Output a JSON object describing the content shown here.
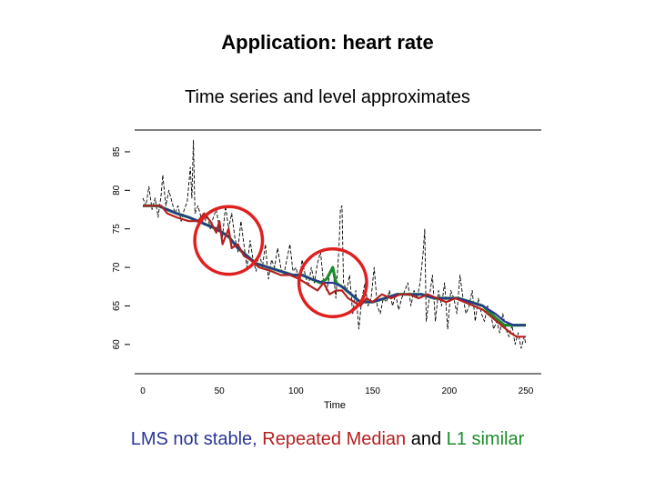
{
  "slide": {
    "title": "Application: heart rate"
  },
  "chart_data": {
    "type": "line",
    "title": "Time series and level approximates",
    "xlabel": "Time",
    "ylabel": "",
    "xlim": [
      0,
      250
    ],
    "ylim": [
      57.5,
      87
    ],
    "x_ticks": [
      "0",
      "50",
      "100",
      "150",
      "200",
      "250"
    ],
    "y_ticks": [
      "60",
      "65",
      "70",
      "75",
      "80",
      "85"
    ],
    "grid": false,
    "series": [
      {
        "name": "",
        "role": "raw",
        "color": "#000000",
        "points": [
          [
            0,
            79
          ],
          [
            2,
            78
          ],
          [
            4,
            80.5
          ],
          [
            6,
            77.5
          ],
          [
            8,
            79
          ],
          [
            10,
            76.5
          ],
          [
            12,
            79.5
          ],
          [
            13,
            82
          ],
          [
            15,
            78
          ],
          [
            17,
            80
          ],
          [
            19,
            78.5
          ],
          [
            21,
            77
          ],
          [
            23,
            78
          ],
          [
            25,
            76
          ],
          [
            27,
            77.5
          ],
          [
            29,
            78.5
          ],
          [
            31,
            83
          ],
          [
            32,
            79
          ],
          [
            33,
            86.5
          ],
          [
            34,
            77
          ],
          [
            36,
            78
          ],
          [
            38,
            76.5
          ],
          [
            40,
            75.5
          ],
          [
            42,
            77
          ],
          [
            44,
            75
          ],
          [
            46,
            76.5
          ],
          [
            48,
            77.5
          ],
          [
            50,
            75
          ],
          [
            52,
            74
          ],
          [
            54,
            78
          ],
          [
            56,
            75
          ],
          [
            58,
            77
          ],
          [
            60,
            74
          ],
          [
            62,
            72
          ],
          [
            64,
            76
          ],
          [
            66,
            73
          ],
          [
            68,
            70
          ],
          [
            70,
            73.5
          ],
          [
            72,
            71
          ],
          [
            74,
            69.5
          ],
          [
            76,
            72
          ],
          [
            78,
            70
          ],
          [
            80,
            73
          ],
          [
            82,
            68.5
          ],
          [
            84,
            71
          ],
          [
            86,
            70
          ],
          [
            88,
            72.5
          ],
          [
            90,
            70
          ],
          [
            92,
            69
          ],
          [
            94,
            71
          ],
          [
            96,
            73
          ],
          [
            98,
            69.5
          ],
          [
            100,
            70
          ],
          [
            102,
            68
          ],
          [
            104,
            71
          ],
          [
            106,
            69
          ],
          [
            108,
            67.5
          ],
          [
            110,
            70
          ],
          [
            112,
            68
          ],
          [
            114,
            70.5
          ],
          [
            116,
            72
          ],
          [
            118,
            68
          ],
          [
            120,
            67
          ],
          [
            122,
            69
          ],
          [
            124,
            70
          ],
          [
            126,
            66
          ],
          [
            128,
            72.5
          ],
          [
            129,
            77.5
          ],
          [
            130,
            78
          ],
          [
            131,
            68
          ],
          [
            133,
            67
          ],
          [
            135,
            69
          ],
          [
            137,
            64
          ],
          [
            139,
            67
          ],
          [
            141,
            62
          ],
          [
            143,
            66
          ],
          [
            145,
            68
          ],
          [
            147,
            65
          ],
          [
            149,
            66
          ],
          [
            151,
            70
          ],
          [
            153,
            65
          ],
          [
            155,
            64
          ],
          [
            157,
            66
          ],
          [
            159,
            65.5
          ],
          [
            161,
            67
          ],
          [
            163,
            65
          ],
          [
            165,
            66.5
          ],
          [
            167,
            64.5
          ],
          [
            169,
            66
          ],
          [
            171,
            67
          ],
          [
            173,
            68
          ],
          [
            175,
            65
          ],
          [
            177,
            67
          ],
          [
            179,
            66
          ],
          [
            181,
            68
          ],
          [
            183,
            72
          ],
          [
            184,
            75
          ],
          [
            185,
            63
          ],
          [
            187,
            66
          ],
          [
            189,
            69
          ],
          [
            191,
            63
          ],
          [
            193,
            67
          ],
          [
            195,
            65
          ],
          [
            197,
            68
          ],
          [
            199,
            62
          ],
          [
            201,
            67
          ],
          [
            203,
            66
          ],
          [
            205,
            64
          ],
          [
            207,
            69
          ],
          [
            209,
            66
          ],
          [
            211,
            64
          ],
          [
            213,
            65
          ],
          [
            215,
            67
          ],
          [
            217,
            63
          ],
          [
            219,
            66
          ],
          [
            221,
            64
          ],
          [
            223,
            63
          ],
          [
            225,
            65
          ],
          [
            227,
            64
          ],
          [
            229,
            62
          ],
          [
            231,
            63
          ],
          [
            233,
            61.5
          ],
          [
            235,
            64
          ],
          [
            237,
            62
          ],
          [
            239,
            61
          ],
          [
            241,
            62.5
          ],
          [
            243,
            60
          ],
          [
            245,
            61.5
          ],
          [
            247,
            59.5
          ],
          [
            249,
            61
          ],
          [
            250,
            60
          ]
        ]
      },
      {
        "name": "LMS",
        "color": "#2b3596",
        "points": [
          [
            0,
            78
          ],
          [
            10,
            78
          ],
          [
            16,
            77.5
          ],
          [
            22,
            77
          ],
          [
            30,
            76.5
          ],
          [
            36,
            76
          ],
          [
            42,
            75.5
          ],
          [
            48,
            75
          ],
          [
            56,
            74
          ],
          [
            62,
            72.5
          ],
          [
            68,
            71.5
          ],
          [
            74,
            70.5
          ],
          [
            82,
            70
          ],
          [
            90,
            69.5
          ],
          [
            98,
            69
          ],
          [
            104,
            69
          ],
          [
            110,
            68.5
          ],
          [
            118,
            68
          ],
          [
            124,
            68
          ],
          [
            130,
            67.5
          ],
          [
            136,
            66.5
          ],
          [
            142,
            65.5
          ],
          [
            150,
            65.5
          ],
          [
            158,
            66
          ],
          [
            166,
            66.5
          ],
          [
            174,
            66.5
          ],
          [
            182,
            66.5
          ],
          [
            190,
            66
          ],
          [
            198,
            66
          ],
          [
            206,
            66
          ],
          [
            214,
            65.5
          ],
          [
            222,
            65
          ],
          [
            230,
            64
          ],
          [
            236,
            63
          ],
          [
            242,
            62.5
          ],
          [
            250,
            62.5
          ]
        ]
      },
      {
        "name": "Repeated Median",
        "color": "#b52020",
        "points": [
          [
            0,
            78
          ],
          [
            12,
            78
          ],
          [
            16,
            77
          ],
          [
            22,
            76.5
          ],
          [
            30,
            76
          ],
          [
            36,
            76
          ],
          [
            40,
            77
          ],
          [
            44,
            76
          ],
          [
            48,
            74.5
          ],
          [
            50,
            76
          ],
          [
            52,
            73
          ],
          [
            56,
            75
          ],
          [
            58,
            72.5
          ],
          [
            62,
            73
          ],
          [
            66,
            71.5
          ],
          [
            70,
            71
          ],
          [
            76,
            70
          ],
          [
            84,
            69.5
          ],
          [
            90,
            69
          ],
          [
            96,
            69
          ],
          [
            102,
            68.5
          ],
          [
            106,
            68
          ],
          [
            110,
            67.5
          ],
          [
            114,
            67
          ],
          [
            118,
            68
          ],
          [
            122,
            66.5
          ],
          [
            126,
            67
          ],
          [
            130,
            67
          ],
          [
            134,
            66
          ],
          [
            138,
            65.5
          ],
          [
            142,
            65
          ],
          [
            146,
            66
          ],
          [
            150,
            65.5
          ],
          [
            156,
            66.5
          ],
          [
            162,
            66
          ],
          [
            168,
            66.5
          ],
          [
            174,
            66.5
          ],
          [
            180,
            66
          ],
          [
            186,
            66.5
          ],
          [
            192,
            66
          ],
          [
            198,
            65.5
          ],
          [
            204,
            66
          ],
          [
            210,
            65.5
          ],
          [
            216,
            65
          ],
          [
            222,
            64.5
          ],
          [
            228,
            63.5
          ],
          [
            234,
            62.5
          ],
          [
            240,
            61.5
          ],
          [
            244,
            61
          ],
          [
            250,
            61
          ]
        ]
      },
      {
        "name": "L1",
        "color": "#1a8c2a",
        "points": [
          [
            0,
            78
          ],
          [
            10,
            78
          ],
          [
            16,
            77.5
          ],
          [
            22,
            77
          ],
          [
            30,
            76.5
          ],
          [
            36,
            76
          ],
          [
            42,
            75.5
          ],
          [
            48,
            75
          ],
          [
            56,
            74
          ],
          [
            62,
            72.5
          ],
          [
            68,
            71.5
          ],
          [
            74,
            70.5
          ],
          [
            82,
            70
          ],
          [
            90,
            69.5
          ],
          [
            98,
            69
          ],
          [
            104,
            69
          ],
          [
            110,
            68.5
          ],
          [
            116,
            68
          ],
          [
            120,
            68.5
          ],
          [
            124,
            70
          ],
          [
            126,
            68
          ],
          [
            130,
            67.5
          ],
          [
            136,
            66.5
          ],
          [
            142,
            65.5
          ],
          [
            150,
            65.5
          ],
          [
            158,
            66
          ],
          [
            166,
            66.5
          ],
          [
            174,
            66.5
          ],
          [
            182,
            66.5
          ],
          [
            190,
            66
          ],
          [
            198,
            66
          ],
          [
            206,
            66
          ],
          [
            214,
            65.5
          ],
          [
            222,
            65
          ],
          [
            230,
            63.5
          ],
          [
            236,
            62.5
          ],
          [
            240,
            62.5
          ],
          [
            250,
            62.5
          ]
        ]
      }
    ],
    "annotations": [
      {
        "type": "circle",
        "color": "#e02020",
        "center": [
          56,
          73.5
        ],
        "radius_x": 13
      },
      {
        "type": "circle",
        "color": "#e02020",
        "center": [
          124,
          68
        ],
        "radius_x": 13
      }
    ]
  },
  "caption": {
    "lms": "LMS not stable,",
    "repeated_median": "Repeated Median",
    "and": "and",
    "l1": "L1 similar"
  }
}
